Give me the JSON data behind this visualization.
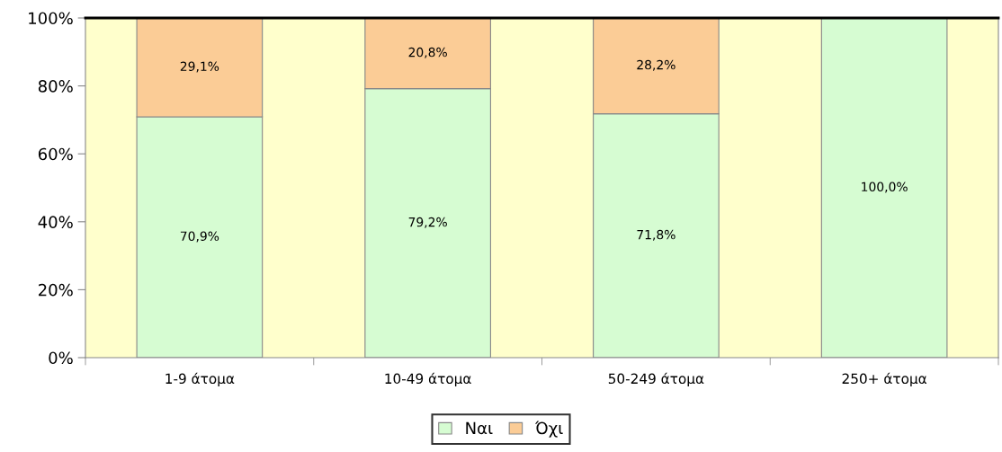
{
  "chart_data": {
    "type": "bar",
    "stacked": true,
    "categories": [
      "1-9 άτομα",
      "10-49 άτομα",
      "50-249 άτομα",
      "250+ άτομα"
    ],
    "series": [
      {
        "name": "Ναι",
        "color": "#d6fcd2",
        "values": [
          70.9,
          79.2,
          71.8,
          100.0
        ],
        "value_labels": [
          "70,9%",
          "79,2%",
          "71,8%",
          "100,0%"
        ]
      },
      {
        "name": "Όχι",
        "color": "#fbcc96",
        "values": [
          29.1,
          20.8,
          28.2,
          null
        ],
        "value_labels": [
          "29,1%",
          "20,8%",
          "28,2%",
          null
        ]
      }
    ],
    "ylim": [
      0,
      100
    ],
    "yticks": [
      {
        "value": 0,
        "label": "0%"
      },
      {
        "value": 20,
        "label": "20%"
      },
      {
        "value": 40,
        "label": "40%"
      },
      {
        "value": 60,
        "label": "60%"
      },
      {
        "value": 80,
        "label": "80%"
      },
      {
        "value": 100,
        "label": "100%"
      }
    ],
    "grid": false,
    "legend": "bottom"
  }
}
